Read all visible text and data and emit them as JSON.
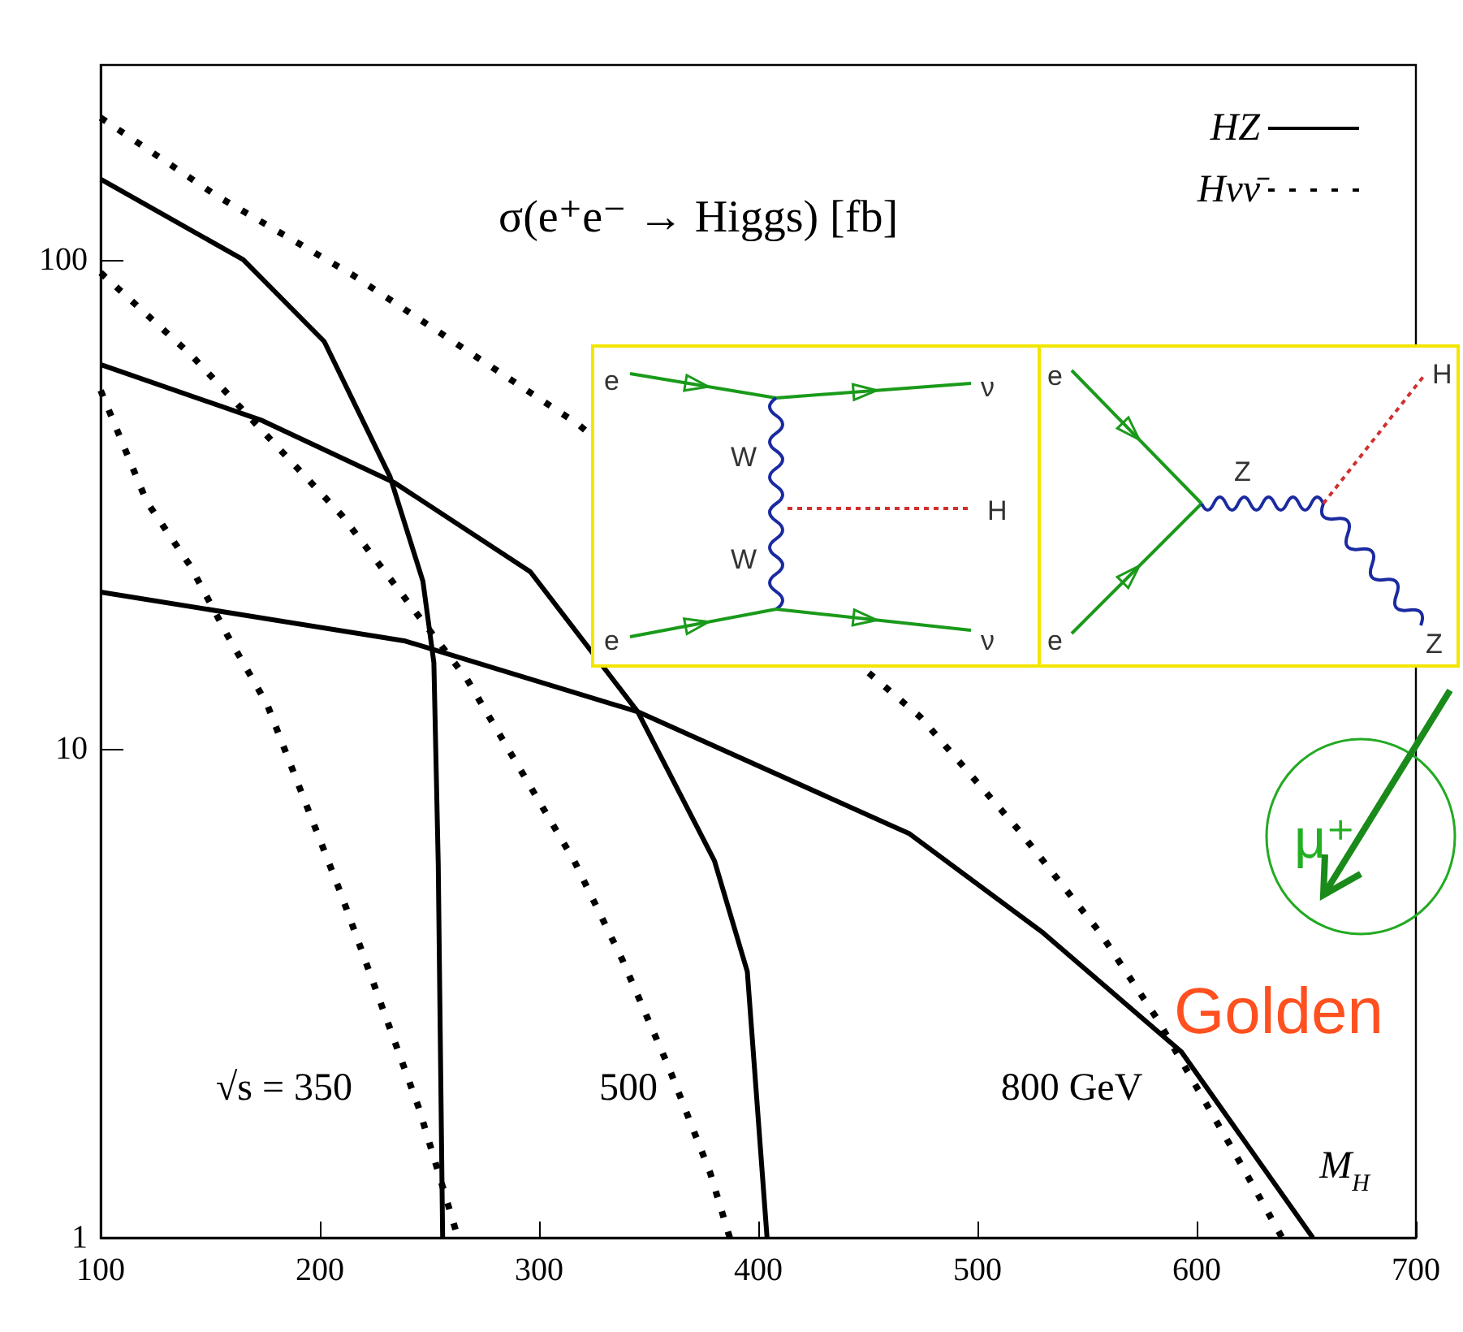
{
  "chart_data": {
    "type": "line",
    "title": "σ(e⁺e⁻ → Higgs) [fb]",
    "xlim": [
      100,
      700
    ],
    "xticks": [
      100,
      200,
      300,
      400,
      500,
      600,
      700
    ],
    "ylim": [
      1,
      250
    ],
    "yticks": [
      1,
      10,
      100
    ],
    "log": "y",
    "grid": false,
    "legend": "top right",
    "marker": "none",
    "series": [
      {
        "name": "HZ",
        "color": "#000000",
        "line_style": "solid",
        "x": [
          100,
          165,
          202,
          232,
          247,
          252,
          254,
          256
        ],
        "values": [
          146,
          100,
          68,
          36,
          22,
          15,
          5.8,
          1
        ]
      },
      {
        "color": "#000000",
        "line_style": "solid",
        "x": [
          100,
          173,
          234,
          296,
          345,
          380,
          395,
          404
        ],
        "values": [
          61,
          47,
          35,
          23,
          11.9,
          5.9,
          3.5,
          1
        ]
      },
      {
        "color": "#000000",
        "line_style": "solid",
        "x": [
          100,
          239,
          345,
          469,
          530,
          593,
          653
        ],
        "values": [
          20.9,
          16.6,
          11.9,
          6.7,
          4.2,
          2.4,
          1
        ]
      },
      {
        "name": "Hνν̄",
        "color": "#000000",
        "line_style": "dotted",
        "x": [
          100,
          121,
          141,
          158,
          176,
          210,
          245,
          253,
          263
        ],
        "values": [
          54,
          32,
          23.6,
          17,
          12.3,
          5,
          1.85,
          1.41,
          1
        ]
      },
      {
        "color": "#000000",
        "line_style": "dotted",
        "x": [
          100,
          141,
          210,
          252,
          267,
          316,
          338,
          359,
          378,
          387
        ],
        "values": [
          94,
          64,
          30,
          17,
          13.9,
          5.9,
          3.7,
          2.24,
          1.36,
          1
        ]
      },
      {
        "color": "#000000",
        "line_style": "dotted",
        "x": [
          100,
          153,
          215,
          318,
          474,
          519,
          556,
          582,
          617,
          639
        ],
        "values": [
          195,
          135,
          93,
          46,
          11.6,
          6.8,
          4.2,
          2.8,
          1.5,
          1
        ]
      }
    ],
    "annotations": [
      "√s = 350",
      "500",
      "800 GeV",
      "M$_{H}$",
      "Golden",
      "μ⁺",
      "e",
      "ν",
      "W",
      "W",
      "H",
      "e",
      "ν",
      "e",
      "Z",
      "H",
      "e",
      "Z"
    ]
  }
}
